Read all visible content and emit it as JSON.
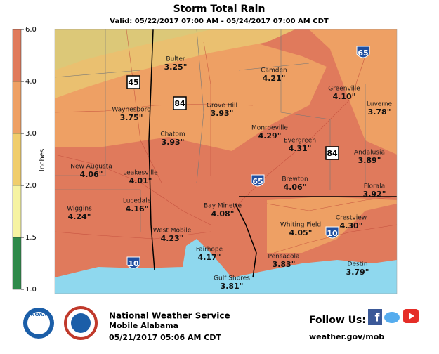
{
  "header": {
    "title": "Storm Total Rain",
    "valid": "Valid: 05/22/2017 07:00 AM - 05/24/2017 07:00 AM CDT"
  },
  "legend": {
    "unit": "Inches",
    "ticks": [
      {
        "value": 6,
        "label": "6.0"
      },
      {
        "value": 4,
        "label": "4.0"
      },
      {
        "value": 3,
        "label": "3.0"
      },
      {
        "value": 2,
        "label": "2.0"
      },
      {
        "value": 1.5,
        "label": "1.5"
      },
      {
        "value": 1,
        "label": "1.0"
      }
    ]
  },
  "cities": [
    {
      "name": "Bulter",
      "amount": "3.25\""
    },
    {
      "name": "Camden",
      "amount": "4.21\""
    },
    {
      "name": "Greenville",
      "amount": "4.10\""
    },
    {
      "name": "Luverne",
      "amount": "3.78\""
    },
    {
      "name": "Waynesboro",
      "amount": "3.75\""
    },
    {
      "name": "Grove Hill",
      "amount": "3.93\""
    },
    {
      "name": "Monroeville",
      "amount": "4.29\""
    },
    {
      "name": "Chatom",
      "amount": "3.93\""
    },
    {
      "name": "Evergreen",
      "amount": "4.31\""
    },
    {
      "name": "Andalusia",
      "amount": "3.89\""
    },
    {
      "name": "New Augusta",
      "amount": "4.06\""
    },
    {
      "name": "Leakesville",
      "amount": "4.01\""
    },
    {
      "name": "Brewton",
      "amount": "4.06\""
    },
    {
      "name": "Florala",
      "amount": "3.92\""
    },
    {
      "name": "Lucedale",
      "amount": "4.16\""
    },
    {
      "name": "Wiggins",
      "amount": "4.24\""
    },
    {
      "name": "Bay Minette",
      "amount": "4.08\""
    },
    {
      "name": "Whiting Field",
      "amount": "4.05\""
    },
    {
      "name": "Crestview",
      "amount": "4.30\""
    },
    {
      "name": "West Mobile",
      "amount": "4.23\""
    },
    {
      "name": "Fairhope",
      "amount": "4.17\""
    },
    {
      "name": "Pensacola",
      "amount": "3.83\""
    },
    {
      "name": "Destin",
      "amount": "3.79\""
    },
    {
      "name": "Gulf Shores",
      "amount": "3.81\""
    }
  ],
  "highways": [
    "45",
    "84",
    "84",
    "65",
    "65",
    "10",
    "10"
  ],
  "footer": {
    "agency": "National Weather Service",
    "office": "Mobile Alabama",
    "issued": "05/21/2017 05:06 AM CDT",
    "follow": "Follow Us:",
    "website": "weather.gov/mob",
    "noaa": "NOAA"
  }
}
